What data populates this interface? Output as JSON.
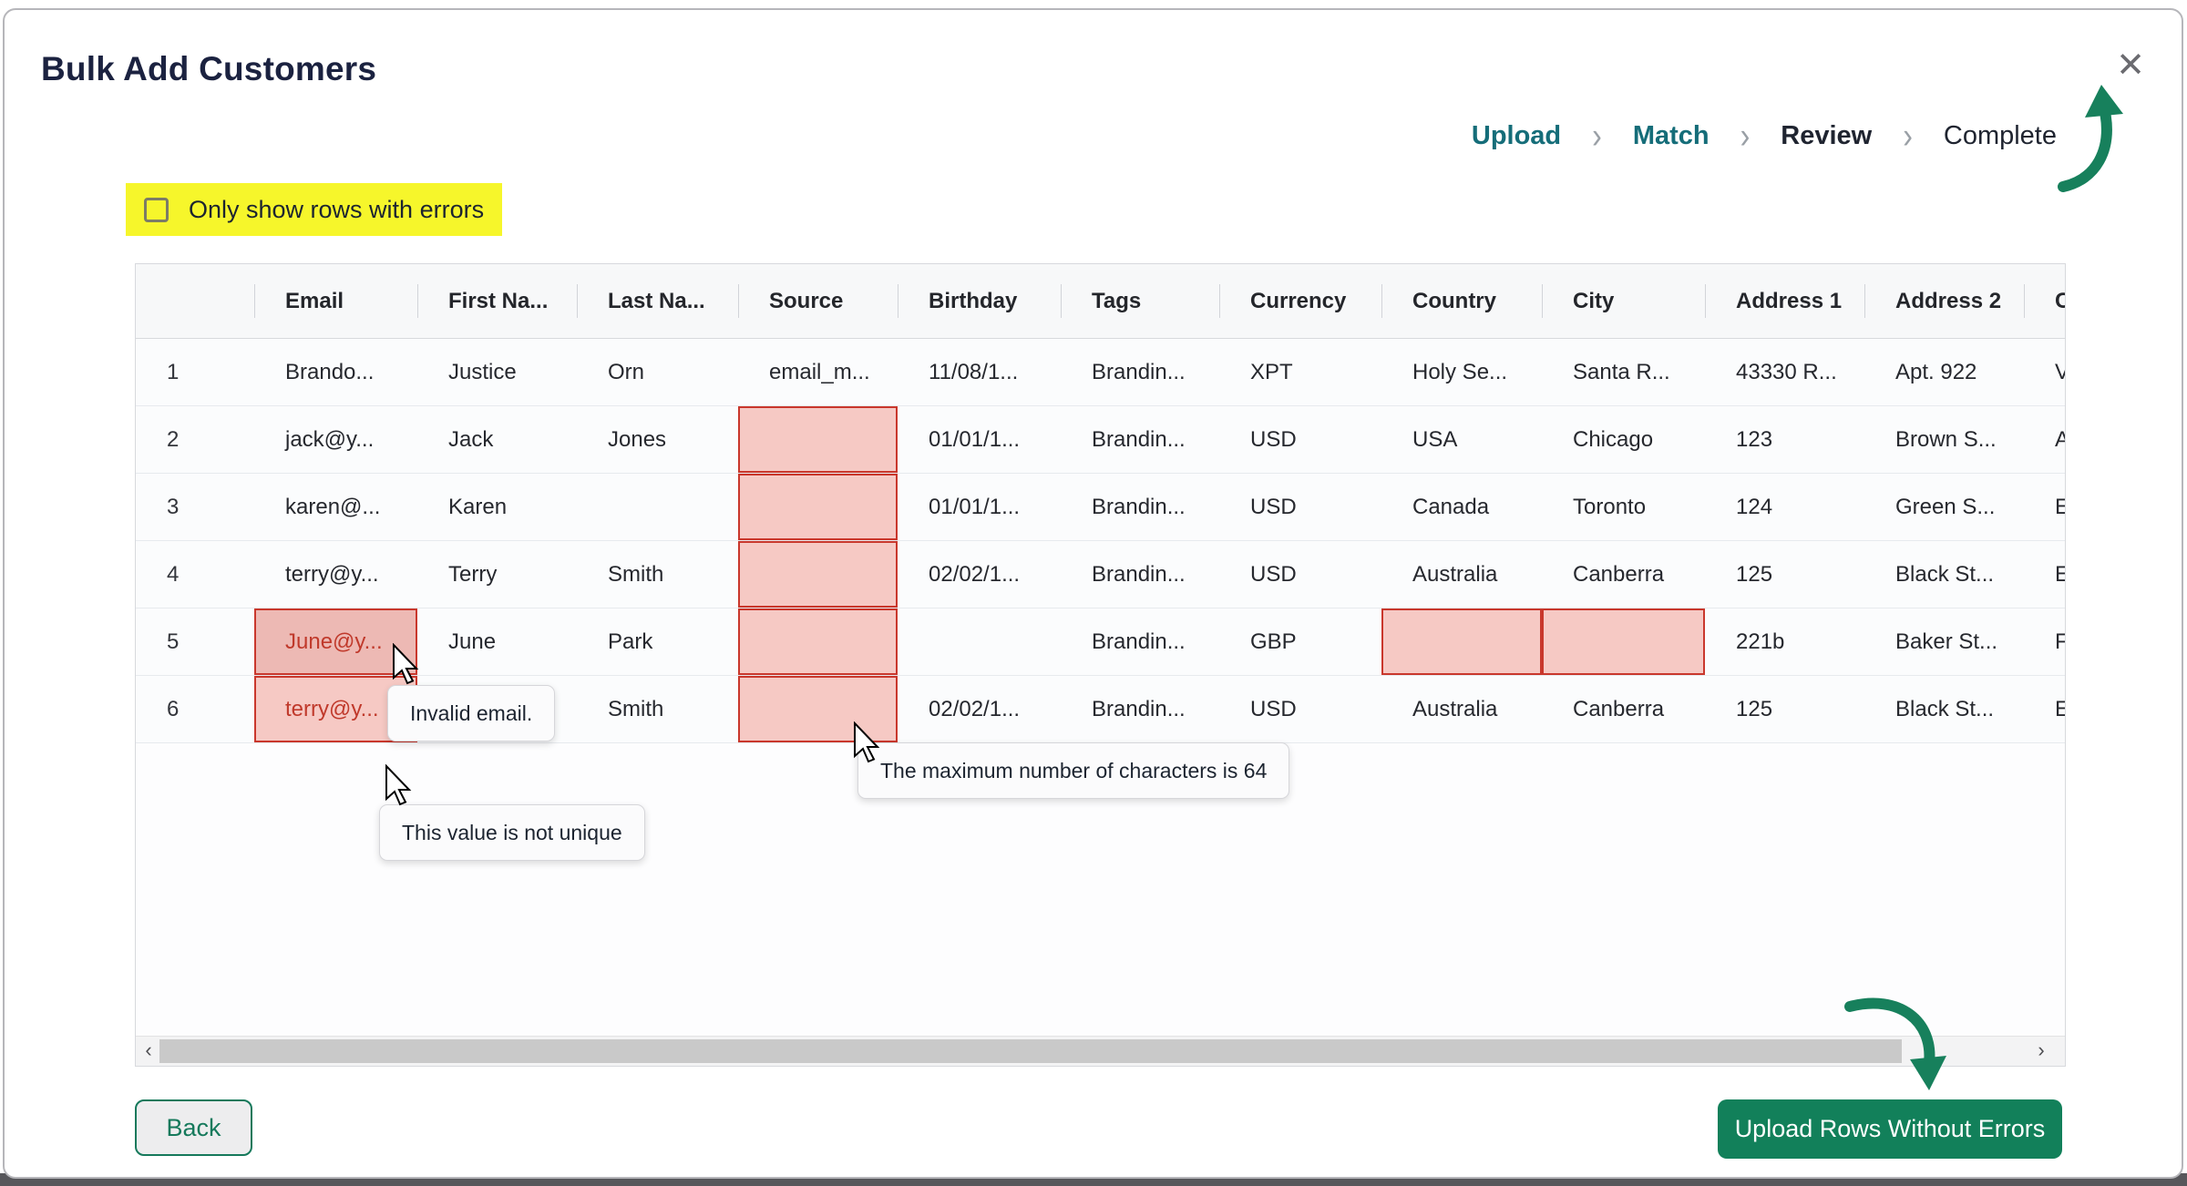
{
  "dialog": {
    "title": "Bulk Add Customers",
    "close_icon": "✕"
  },
  "stepper": {
    "separator": "›",
    "steps": [
      {
        "label": "Upload",
        "state": "done"
      },
      {
        "label": "Match",
        "state": "done"
      },
      {
        "label": "Review",
        "state": "current"
      },
      {
        "label": "Complete",
        "state": "upcoming"
      }
    ]
  },
  "filter": {
    "label": "Only show rows with errors",
    "checked": false
  },
  "table": {
    "headers": [
      "",
      "Email",
      "First Na...",
      "Last Na...",
      "Source",
      "Birthday",
      "Tags",
      "Currency",
      "Country",
      "City",
      "Address 1",
      "Address 2",
      "C"
    ],
    "rows": [
      {
        "cells": [
          "1",
          "Brando...",
          "Justice",
          "Orn",
          "email_m...",
          "11/08/1...",
          "Brandin...",
          "XPT",
          "Holy Se...",
          "Santa R...",
          "43330 R...",
          "Apt. 922",
          "V"
        ],
        "error_cells": [],
        "red_text_cells": [],
        "hover_cells": []
      },
      {
        "cells": [
          "2",
          "jack@y...",
          "Jack",
          "Jones",
          "",
          "01/01/1...",
          "Brandin...",
          "USD",
          "USA",
          "Chicago",
          "123",
          "Brown S...",
          "A"
        ],
        "error_cells": [
          4
        ],
        "red_text_cells": [],
        "hover_cells": []
      },
      {
        "cells": [
          "3",
          "karen@...",
          "Karen",
          "",
          "",
          "01/01/1...",
          "Brandin...",
          "USD",
          "Canada",
          "Toronto",
          "124",
          "Green S...",
          "E"
        ],
        "error_cells": [
          4
        ],
        "red_text_cells": [],
        "hover_cells": []
      },
      {
        "cells": [
          "4",
          "terry@y...",
          "Terry",
          "Smith",
          "",
          "02/02/1...",
          "Brandin...",
          "USD",
          "Australia",
          "Canberra",
          "125",
          "Black St...",
          "E"
        ],
        "error_cells": [
          4
        ],
        "red_text_cells": [],
        "hover_cells": []
      },
      {
        "cells": [
          "5",
          "June@y...",
          "June",
          "Park",
          "",
          "",
          "Brandin...",
          "GBP",
          "",
          "",
          "221b",
          "Baker St...",
          "F"
        ],
        "error_cells": [
          1,
          4,
          8,
          9
        ],
        "red_text_cells": [
          1
        ],
        "hover_cells": [
          1
        ]
      },
      {
        "cells": [
          "6",
          "terry@y...",
          "",
          "Smith",
          "",
          "02/02/1...",
          "Brandin...",
          "USD",
          "Australia",
          "Canberra",
          "125",
          "Black St...",
          "E"
        ],
        "error_cells": [
          1,
          4
        ],
        "red_text_cells": [
          1
        ],
        "hover_cells": []
      }
    ]
  },
  "tooltips": [
    {
      "text": "Invalid email."
    },
    {
      "text": "This value is not unique"
    },
    {
      "text": "The maximum number of characters is 64"
    }
  ],
  "scrollbar": {
    "left_arrow": "‹",
    "right_arrow": "›"
  },
  "footer": {
    "back_label": "Back",
    "upload_label": "Upload Rows Without Errors"
  },
  "colors": {
    "accent_green": "#12805a",
    "step_teal": "#156d79",
    "error_fill": "#f6c9c4",
    "error_border": "#c9372c",
    "error_text": "#c0392b",
    "highlight_yellow": "#f6f62b",
    "title_navy": "#1b2240"
  }
}
